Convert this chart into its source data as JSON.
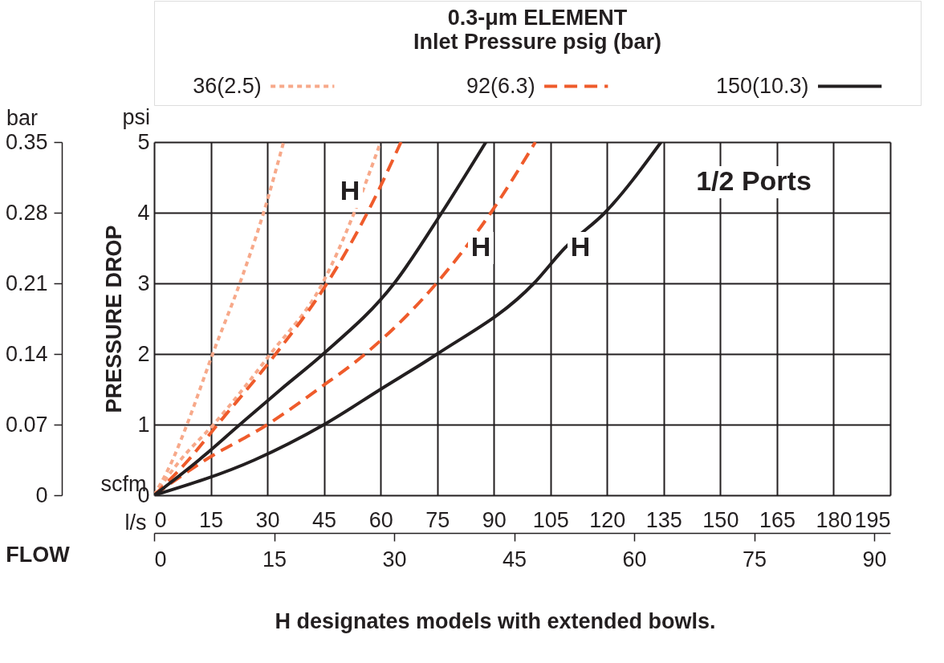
{
  "chart_data": {
    "type": "line",
    "title": "0.3-μm ELEMENT",
    "legend_title": "Inlet Pressure psig (bar)",
    "ylabel": "PRESSURE DROP",
    "xlabel": "scfm",
    "x2label": "l/s",
    "y2label": "bar",
    "xlim": [
      0,
      195
    ],
    "xticks": [
      0,
      15,
      30,
      45,
      60,
      75,
      90,
      105,
      120,
      135,
      150,
      165,
      180,
      195
    ],
    "x2lim": [
      0,
      92
    ],
    "x2ticks": [
      0,
      15,
      30,
      45,
      60,
      75,
      90
    ],
    "ylim": [
      0,
      5
    ],
    "yticks": [
      0,
      1,
      2,
      3,
      4,
      5
    ],
    "y2lim": [
      0,
      0.35
    ],
    "y2ticks": [
      0,
      0.07,
      0.14,
      0.21,
      0.28,
      0.35
    ],
    "grid": true,
    "legend": "top",
    "series": [
      {
        "name": "36(2.5)",
        "color": "#f7a98a",
        "line_style": "dotted",
        "x": [
          0,
          4.9,
          8.7,
          15.5,
          22.7,
          29,
          34.3
        ],
        "values": [
          0,
          0.5,
          1,
          2,
          3,
          4,
          5
        ]
      },
      {
        "color": "#f7a98a",
        "line_style": "dotted",
        "x": [
          0,
          7,
          15.7,
          30.8,
          44.6,
          53,
          60
        ],
        "values": [
          0,
          0.5,
          1,
          2,
          3,
          4,
          5
        ]
      },
      {
        "name": "92(6.3)",
        "color": "#ef5b2b",
        "line_style": "dashed",
        "x": [
          0,
          9.1,
          16.8,
          32.2,
          45.8,
          56.5,
          65.4
        ],
        "values": [
          0,
          0.5,
          1,
          2,
          3,
          4,
          5
        ]
      },
      {
        "color": "#ef5b2b",
        "line_style": "dashed",
        "x": [
          0,
          13.6,
          30,
          43.4,
          55.9,
          74.8,
          89.2,
          101
        ],
        "values": [
          0,
          0.5,
          1,
          1.5,
          2,
          3,
          4,
          5
        ]
      },
      {
        "name": "150(10.3)",
        "color": "#231f20",
        "line_style": "solid",
        "x": [
          0,
          11.9,
          22.7,
          33.6,
          44.8,
          63.6,
          76.2,
          87.9
        ],
        "values": [
          0,
          0.5,
          1,
          1.5,
          2,
          3,
          4,
          5
        ]
      },
      {
        "color": "#231f20",
        "line_style": "solid",
        "x": [
          0,
          26.6,
          45,
          60,
          75,
          100.6,
          108.8,
          119.4,
          134.3
        ],
        "values": [
          0,
          0.5,
          1,
          1.5,
          2,
          3,
          3.5,
          4,
          5
        ]
      }
    ],
    "annotations": [
      "H",
      "H",
      "H",
      "1/2 Ports",
      "psi",
      "FLOW",
      "H designates models with extended bowls."
    ]
  }
}
